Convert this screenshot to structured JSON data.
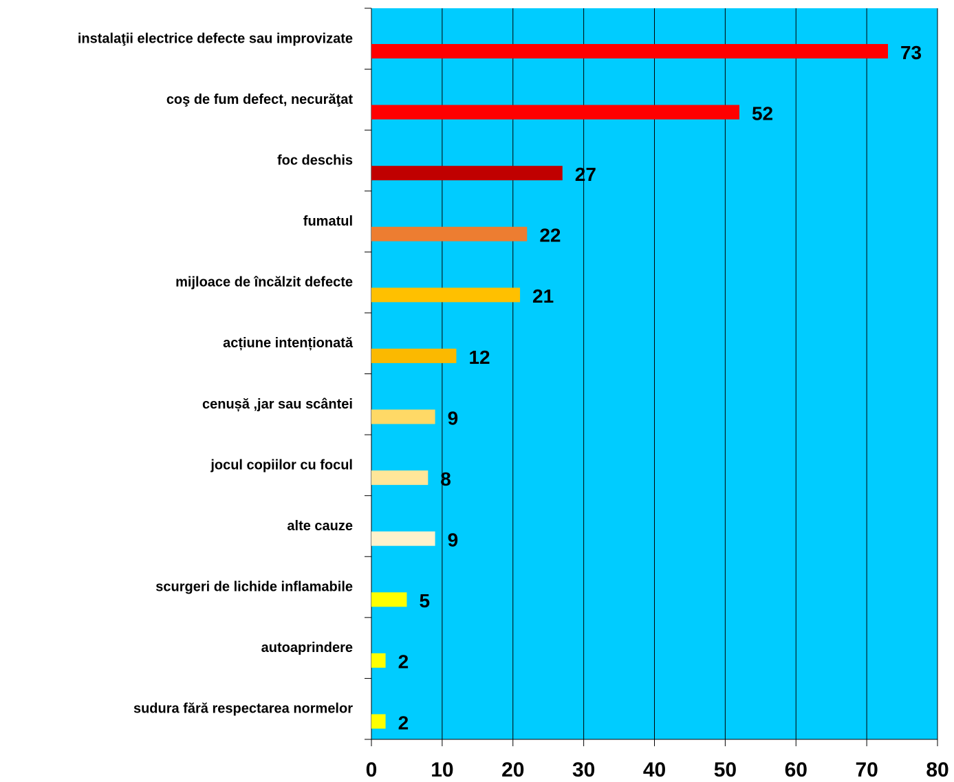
{
  "chart_data": {
    "type": "bar",
    "orientation": "horizontal",
    "categories": [
      "instalaţii electrice defecte sau improvizate",
      "coş de fum defect, necurăţat",
      "foc deschis",
      "fumatul",
      "mijloace de încălzit defecte",
      "acțiune intenționată",
      "cenușă ,jar sau scântei",
      "jocul copiilor cu focul",
      "alte cauze",
      "scurgeri de lichide inflamabile",
      "autoaprindere",
      "sudura fără respectarea normelor"
    ],
    "values": [
      73,
      52,
      27,
      22,
      21,
      12,
      9,
      8,
      9,
      5,
      2,
      2
    ],
    "colors": [
      "#ff0000",
      "#ff0000",
      "#c00000",
      "#ed7d31",
      "#ffc000",
      "#fbb900",
      "#ffd966",
      "#ffe699",
      "#fff2cc",
      "#ffff00",
      "#ffff00",
      "#ffff00"
    ],
    "xlim": [
      0,
      80
    ],
    "xticks": [
      0,
      10,
      20,
      30,
      40,
      50,
      60,
      70,
      80
    ],
    "grid": true,
    "plot_background": "#00ccff"
  }
}
